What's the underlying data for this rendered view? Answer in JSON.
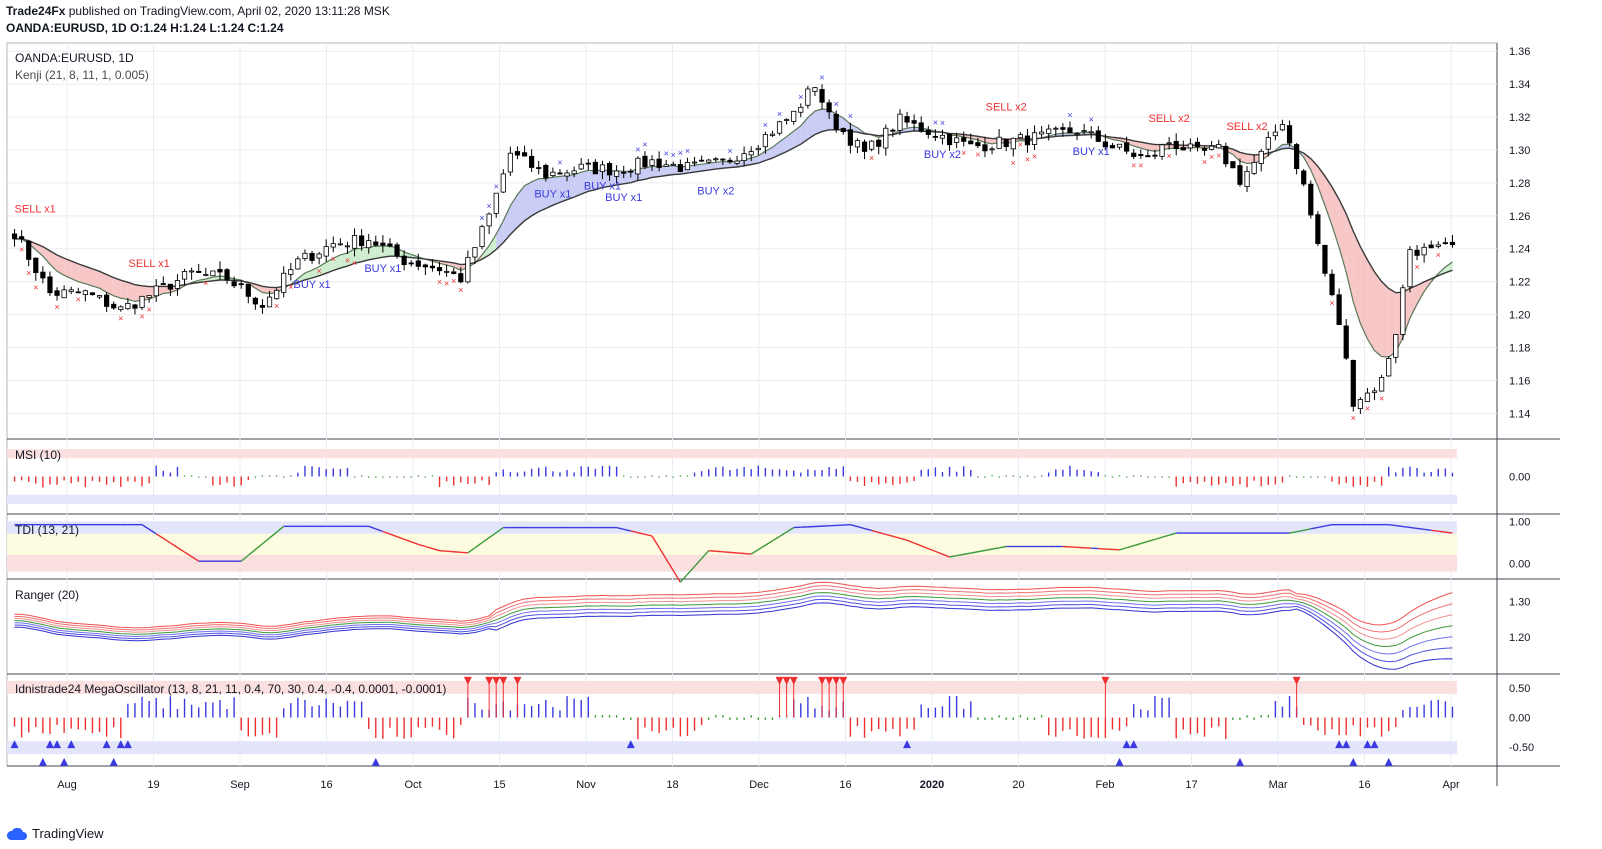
{
  "header": {
    "publisher": "Trade24Fx",
    "published_text": "published on TradingView.com, April 02, 2020 13:11:28 MSK",
    "symbol_line": "OANDA:EURUSD, 1D",
    "ohlc": [
      {
        "label": "O:",
        "value": "1.24"
      },
      {
        "label": "H:",
        "value": "1.24"
      },
      {
        "label": "L:",
        "value": "1.24"
      },
      {
        "label": "C:",
        "value": "1.24"
      }
    ]
  },
  "footer": {
    "brand": "TradingView"
  },
  "colors": {
    "bull": "#ffffff",
    "bear": "#000000",
    "buy": "#3a3ae0",
    "sell": "#f03030",
    "band_pink": "#f7c6c6",
    "band_blue": "#c9ccf5",
    "band_green": "#cfeecf",
    "grid": "#e9ecf2",
    "zone_red": "#fbe0e0",
    "zone_blue": "#e3e6fb",
    "zone_yellow": "#fdfbe0"
  },
  "chart_data": [
    {
      "id": "price",
      "type": "candlestick",
      "title": "OANDA:EURUSD, 1D",
      "indicator_label": "Kenji (21, 8, 11, 1, 0.005)",
      "ylim": [
        1.125,
        1.365
      ],
      "y_ticks": [
        "1.36",
        "1.34",
        "1.32",
        "1.30",
        "1.28",
        "1.26",
        "1.24",
        "1.22",
        "1.20",
        "1.18",
        "1.16",
        "1.14"
      ],
      "x_ticks": [
        "Aug",
        "19",
        "Sep",
        "16",
        "Oct",
        "15",
        "Nov",
        "18",
        "Dec",
        "16",
        "2020",
        "20",
        "Feb",
        "17",
        "Mar",
        "16",
        "Apr"
      ],
      "anchors": [
        {
          "i": 0,
          "c": 1.25
        },
        {
          "i": 5,
          "c": 1.213
        },
        {
          "i": 10,
          "c": 1.213
        },
        {
          "i": 15,
          "c": 1.203
        },
        {
          "i": 20,
          "c": 1.214
        },
        {
          "i": 25,
          "c": 1.225
        },
        {
          "i": 30,
          "c": 1.222
        },
        {
          "i": 35,
          "c": 1.206
        },
        {
          "i": 40,
          "c": 1.232
        },
        {
          "i": 45,
          "c": 1.243
        },
        {
          "i": 50,
          "c": 1.246
        },
        {
          "i": 55,
          "c": 1.233
        },
        {
          "i": 60,
          "c": 1.228
        },
        {
          "i": 63,
          "c": 1.222
        },
        {
          "i": 67,
          "c": 1.26
        },
        {
          "i": 70,
          "c": 1.298
        },
        {
          "i": 75,
          "c": 1.285
        },
        {
          "i": 80,
          "c": 1.289
        },
        {
          "i": 85,
          "c": 1.288
        },
        {
          "i": 90,
          "c": 1.293
        },
        {
          "i": 95,
          "c": 1.289
        },
        {
          "i": 100,
          "c": 1.292
        },
        {
          "i": 105,
          "c": 1.305
        },
        {
          "i": 110,
          "c": 1.322
        },
        {
          "i": 113,
          "c": 1.34
        },
        {
          "i": 115,
          "c": 1.32
        },
        {
          "i": 120,
          "c": 1.298
        },
        {
          "i": 125,
          "c": 1.318
        },
        {
          "i": 130,
          "c": 1.31
        },
        {
          "i": 135,
          "c": 1.302
        },
        {
          "i": 140,
          "c": 1.305
        },
        {
          "i": 145,
          "c": 1.308
        },
        {
          "i": 150,
          "c": 1.312
        },
        {
          "i": 155,
          "c": 1.302
        },
        {
          "i": 160,
          "c": 1.294
        },
        {
          "i": 163,
          "c": 1.305
        },
        {
          "i": 167,
          "c": 1.298
        },
        {
          "i": 170,
          "c": 1.3
        },
        {
          "i": 173,
          "c": 1.282
        },
        {
          "i": 176,
          "c": 1.297
        },
        {
          "i": 179,
          "c": 1.318
        },
        {
          "i": 182,
          "c": 1.278
        },
        {
          "i": 185,
          "c": 1.225
        },
        {
          "i": 187,
          "c": 1.195
        },
        {
          "i": 189,
          "c": 1.148
        },
        {
          "i": 191,
          "c": 1.152
        },
        {
          "i": 193,
          "c": 1.16
        },
        {
          "i": 195,
          "c": 1.19
        },
        {
          "i": 197,
          "c": 1.24
        },
        {
          "i": 200,
          "c": 1.238
        },
        {
          "i": 203,
          "c": 1.241
        }
      ],
      "n_bars": 204,
      "signals": [
        {
          "label": "SELL x1",
          "i": 0,
          "price": 1.262,
          "kind": "sell"
        },
        {
          "label": "SELL x1",
          "i": 19,
          "price": 1.229,
          "kind": "sell"
        },
        {
          "label": "BUY x1",
          "i": 42,
          "price": 1.216,
          "kind": "buy"
        },
        {
          "label": "BUY x1",
          "i": 52,
          "price": 1.226,
          "kind": "buy"
        },
        {
          "label": "BUY x1",
          "i": 76,
          "price": 1.271,
          "kind": "buy"
        },
        {
          "label": "BUY x1",
          "i": 83,
          "price": 1.276,
          "kind": "buy"
        },
        {
          "label": "BUY x1",
          "i": 86,
          "price": 1.269,
          "kind": "buy"
        },
        {
          "label": "BUY x2",
          "i": 99,
          "price": 1.273,
          "kind": "buy"
        },
        {
          "label": "BUY x2",
          "i": 131,
          "price": 1.295,
          "kind": "buy"
        },
        {
          "label": "SELL x2",
          "i": 140,
          "price": 1.324,
          "kind": "sell"
        },
        {
          "label": "BUY x1",
          "i": 152,
          "price": 1.297,
          "kind": "buy"
        },
        {
          "label": "SELL x2",
          "i": 163,
          "price": 1.317,
          "kind": "sell"
        },
        {
          "label": "SELL x2",
          "i": 174,
          "price": 1.312,
          "kind": "sell"
        }
      ]
    },
    {
      "id": "msi",
      "type": "histogram",
      "title": "MSI (10)",
      "ylim": [
        -0.06,
        0.06
      ],
      "y_ticks": [
        "0.00"
      ],
      "segments": [
        [
          0,
          -1
        ],
        [
          12,
          -1
        ],
        [
          20,
          1
        ],
        [
          24,
          0
        ],
        [
          28,
          -1
        ],
        [
          34,
          0
        ],
        [
          40,
          1
        ],
        [
          48,
          0
        ],
        [
          60,
          -1
        ],
        [
          68,
          1
        ],
        [
          76,
          1
        ],
        [
          86,
          0
        ],
        [
          96,
          1
        ],
        [
          110,
          1
        ],
        [
          118,
          -1
        ],
        [
          128,
          1
        ],
        [
          136,
          0
        ],
        [
          146,
          1
        ],
        [
          154,
          0
        ],
        [
          164,
          -1
        ],
        [
          172,
          -1
        ],
        [
          180,
          0
        ],
        [
          186,
          -1
        ],
        [
          194,
          1
        ],
        [
          204,
          1
        ]
      ]
    },
    {
      "id": "tdi",
      "type": "line",
      "title": "TDI (13, 21)",
      "ylim": [
        -0.35,
        1.15
      ],
      "y_ticks": [
        "1.00",
        "0.00"
      ],
      "anchors": [
        [
          0,
          0.92
        ],
        [
          18,
          0.92
        ],
        [
          26,
          0.05
        ],
        [
          32,
          0.05
        ],
        [
          38,
          0.88
        ],
        [
          50,
          0.88
        ],
        [
          57,
          0.45
        ],
        [
          60,
          0.3
        ],
        [
          64,
          0.25
        ],
        [
          69,
          0.85
        ],
        [
          85,
          0.85
        ],
        [
          90,
          0.65
        ],
        [
          94,
          -0.45
        ],
        [
          98,
          0.3
        ],
        [
          104,
          0.22
        ],
        [
          110,
          0.85
        ],
        [
          118,
          0.92
        ],
        [
          126,
          0.55
        ],
        [
          132,
          0.15
        ],
        [
          140,
          0.4
        ],
        [
          148,
          0.4
        ],
        [
          156,
          0.32
        ],
        [
          164,
          0.72
        ],
        [
          172,
          0.72
        ],
        [
          180,
          0.72
        ],
        [
          186,
          0.92
        ],
        [
          194,
          0.92
        ],
        [
          203,
          0.72
        ]
      ]
    },
    {
      "id": "ranger",
      "type": "multi-line",
      "title": "Ranger (20)",
      "ylim": [
        1.1,
        1.36
      ],
      "y_ticks": [
        "1.30",
        "1.20"
      ]
    },
    {
      "id": "mega",
      "type": "histogram",
      "title": "Idnistrade24 MegaOscillator (13, 8, 21, 11, 0.4, 70, 30, 0.4, -0.4, 0.0001, -0.0001)",
      "ylim": [
        -0.82,
        0.72
      ],
      "y_ticks": [
        "0.50",
        "0.00",
        "-0.50"
      ],
      "segments": [
        [
          0,
          -1
        ],
        [
          16,
          1
        ],
        [
          32,
          -1
        ],
        [
          38,
          1
        ],
        [
          50,
          -1
        ],
        [
          64,
          1
        ],
        [
          74,
          1
        ],
        [
          82,
          0
        ],
        [
          88,
          -1
        ],
        [
          98,
          0
        ],
        [
          110,
          1
        ],
        [
          118,
          -1
        ],
        [
          128,
          1
        ],
        [
          136,
          0
        ],
        [
          146,
          -1
        ],
        [
          158,
          1
        ],
        [
          164,
          -1
        ],
        [
          172,
          0
        ],
        [
          178,
          1
        ],
        [
          182,
          -1
        ],
        [
          196,
          1
        ],
        [
          204,
          1
        ]
      ],
      "down_arrows": [
        64,
        67,
        68,
        69,
        71,
        108,
        109,
        110,
        114,
        115,
        116,
        117,
        154,
        181
      ],
      "up_arrows": [
        0,
        4,
        5,
        6,
        7,
        8,
        13,
        14,
        15,
        16,
        51,
        87,
        126,
        156,
        157,
        158,
        173,
        187,
        188,
        189,
        191,
        192,
        194
      ]
    }
  ]
}
